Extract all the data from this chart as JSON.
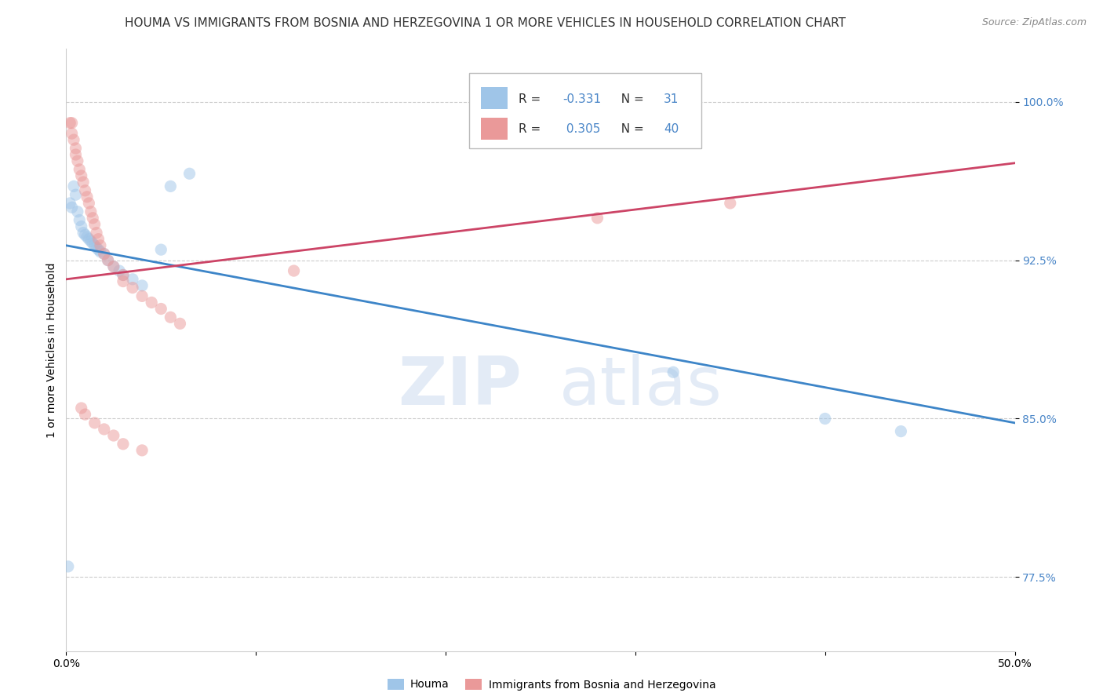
{
  "title": "HOUMA VS IMMIGRANTS FROM BOSNIA AND HERZEGOVINA 1 OR MORE VEHICLES IN HOUSEHOLD CORRELATION CHART",
  "source": "Source: ZipAtlas.com",
  "ylabel": "1 or more Vehicles in Household",
  "xlim": [
    0.0,
    0.5
  ],
  "ylim": [
    0.74,
    1.025
  ],
  "yticks": [
    0.775,
    0.85,
    0.925,
    1.0
  ],
  "ytick_labels": [
    "77.5%",
    "85.0%",
    "92.5%",
    "100.0%"
  ],
  "xticks": [
    0.0,
    0.1,
    0.2,
    0.3,
    0.4,
    0.5
  ],
  "xtick_labels": [
    "0.0%",
    "",
    "",
    "",
    "",
    "50.0%"
  ],
  "color_blue": "#9fc5e8",
  "color_pink": "#ea9999",
  "color_blue_line": "#3d85c8",
  "color_pink_line": "#cc4466",
  "background_color": "#ffffff",
  "watermark_zip": "ZIP",
  "watermark_atlas": "atlas",
  "grid_color": "#cccccc",
  "title_fontsize": 11,
  "axis_label_fontsize": 10,
  "tick_fontsize": 10,
  "legend_label_blue": "Houma",
  "legend_label_pink": "Immigrants from Bosnia and Herzegovina",
  "blue_line_x": [
    0.0,
    0.5
  ],
  "blue_line_y": [
    0.932,
    0.848
  ],
  "pink_line_x": [
    0.0,
    0.5
  ],
  "pink_line_y": [
    0.916,
    0.971
  ],
  "blue_points_x": [
    0.002,
    0.003,
    0.004,
    0.005,
    0.006,
    0.007,
    0.008,
    0.009,
    0.01,
    0.011,
    0.012,
    0.013,
    0.014,
    0.015,
    0.016,
    0.017,
    0.018,
    0.02,
    0.022,
    0.025,
    0.028,
    0.03,
    0.035,
    0.04,
    0.05,
    0.055,
    0.065,
    0.32,
    0.4,
    0.44,
    0.001
  ],
  "blue_points_y": [
    0.952,
    0.95,
    0.96,
    0.956,
    0.948,
    0.944,
    0.941,
    0.938,
    0.937,
    0.936,
    0.935,
    0.934,
    0.933,
    0.932,
    0.931,
    0.93,
    0.929,
    0.928,
    0.925,
    0.922,
    0.92,
    0.918,
    0.916,
    0.913,
    0.93,
    0.96,
    0.966,
    0.872,
    0.85,
    0.844,
    0.78
  ],
  "pink_points_x": [
    0.002,
    0.003,
    0.003,
    0.004,
    0.005,
    0.005,
    0.006,
    0.007,
    0.008,
    0.009,
    0.01,
    0.011,
    0.012,
    0.013,
    0.014,
    0.015,
    0.016,
    0.017,
    0.018,
    0.02,
    0.022,
    0.025,
    0.03,
    0.03,
    0.035,
    0.04,
    0.045,
    0.05,
    0.055,
    0.06,
    0.008,
    0.01,
    0.015,
    0.02,
    0.025,
    0.03,
    0.04,
    0.12,
    0.28,
    0.35
  ],
  "pink_points_y": [
    0.99,
    0.99,
    0.985,
    0.982,
    0.978,
    0.975,
    0.972,
    0.968,
    0.965,
    0.962,
    0.958,
    0.955,
    0.952,
    0.948,
    0.945,
    0.942,
    0.938,
    0.935,
    0.932,
    0.928,
    0.925,
    0.922,
    0.918,
    0.915,
    0.912,
    0.908,
    0.905,
    0.902,
    0.898,
    0.895,
    0.855,
    0.852,
    0.848,
    0.845,
    0.842,
    0.838,
    0.835,
    0.92,
    0.945,
    0.952
  ],
  "marker_size": 11,
  "alpha": 0.5
}
